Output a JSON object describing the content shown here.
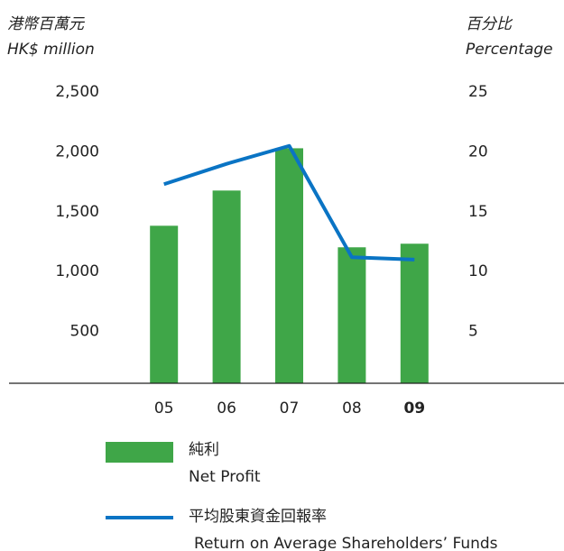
{
  "chart_data": {
    "type": "bar_line",
    "y_label": [
      "港幣百萬元",
      "HK$ million"
    ],
    "y2_label": [
      "百分比",
      "Percentage"
    ],
    "categories": [
      "05",
      "06",
      "07",
      "08",
      "09"
    ],
    "series": [
      {
        "name": "純利",
        "name_en": "Net Profit",
        "type": "bar",
        "color": "#3fa648",
        "values": [
          1383,
          1677,
          2030,
          1203,
          1233
        ]
      },
      {
        "name": "平均股東資金回報率",
        "name_en": "Return on Average Shareholders’ Funds",
        "type": "line",
        "axis": "y2",
        "color": "#0a74c4",
        "values": [
          17.3,
          19.0,
          20.5,
          11.2,
          11.0
        ]
      }
    ],
    "ylim": [
      0,
      2500
    ],
    "yticks": [
      {
        "value": 500,
        "label": "500"
      },
      {
        "value": 1000,
        "label": "1,000"
      },
      {
        "value": 1500,
        "label": "1,500"
      },
      {
        "value": 2000,
        "label": "2,000"
      },
      {
        "value": 2500,
        "label": "2,500"
      }
    ],
    "y2lim": [
      0,
      25
    ],
    "y2ticks": [
      5,
      10,
      15,
      20,
      25
    ]
  }
}
